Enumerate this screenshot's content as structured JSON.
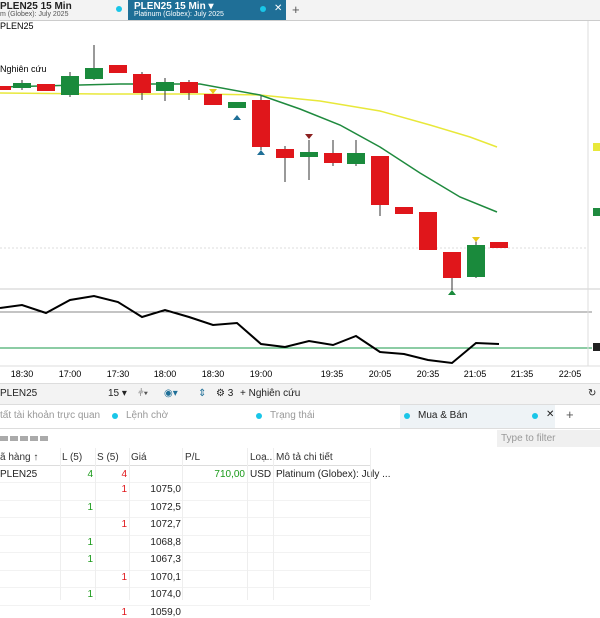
{
  "tabs": {
    "left": {
      "title": "PLEN25 15 Min",
      "subtitle": "m (Globex): July 2025"
    },
    "active": {
      "title": "PLEN25 15 Min",
      "subtitle": "Platinum (Globex): July 2025"
    }
  },
  "chart": {
    "symbol": "PLEN25",
    "study": "Nghiên cứu",
    "times": [
      "18:30",
      "17:00",
      "17:30",
      "18:00",
      "18:30",
      "19:00",
      "19:35",
      "20:05",
      "20:35",
      "21:05",
      "21:35",
      "22:05"
    ]
  },
  "toolbar": {
    "symbol": "PLEN25",
    "interval": "15",
    "count": "3",
    "add_study": "+ Nghiên cứu"
  },
  "panel_tabs": [
    "tất tài khoản trực quan",
    "Lệnh chờ",
    "Trạng thái",
    "Mua & Bán"
  ],
  "filter": "Type to filter",
  "table": {
    "headers": [
      "ã hàng ↑",
      "L (5)",
      "S (5)",
      "Giá",
      "P/L",
      "Loạ...",
      "Mô tả chi tiết"
    ],
    "summary": [
      "PLEN25",
      "4",
      "4",
      "",
      "710,00",
      "USD",
      "Platinum (Globex): July ..."
    ],
    "rows": [
      [
        "",
        "1",
        "1075,0"
      ],
      [
        "1",
        "",
        "1072,5"
      ],
      [
        "",
        "1",
        "1072,7"
      ],
      [
        "1",
        "",
        "1068,8"
      ],
      [
        "1",
        "",
        "1067,3"
      ],
      [
        "",
        "1",
        "1070,1"
      ],
      [
        "1",
        "",
        "1074,0"
      ],
      [
        "",
        "1",
        "1059,0"
      ]
    ]
  }
}
